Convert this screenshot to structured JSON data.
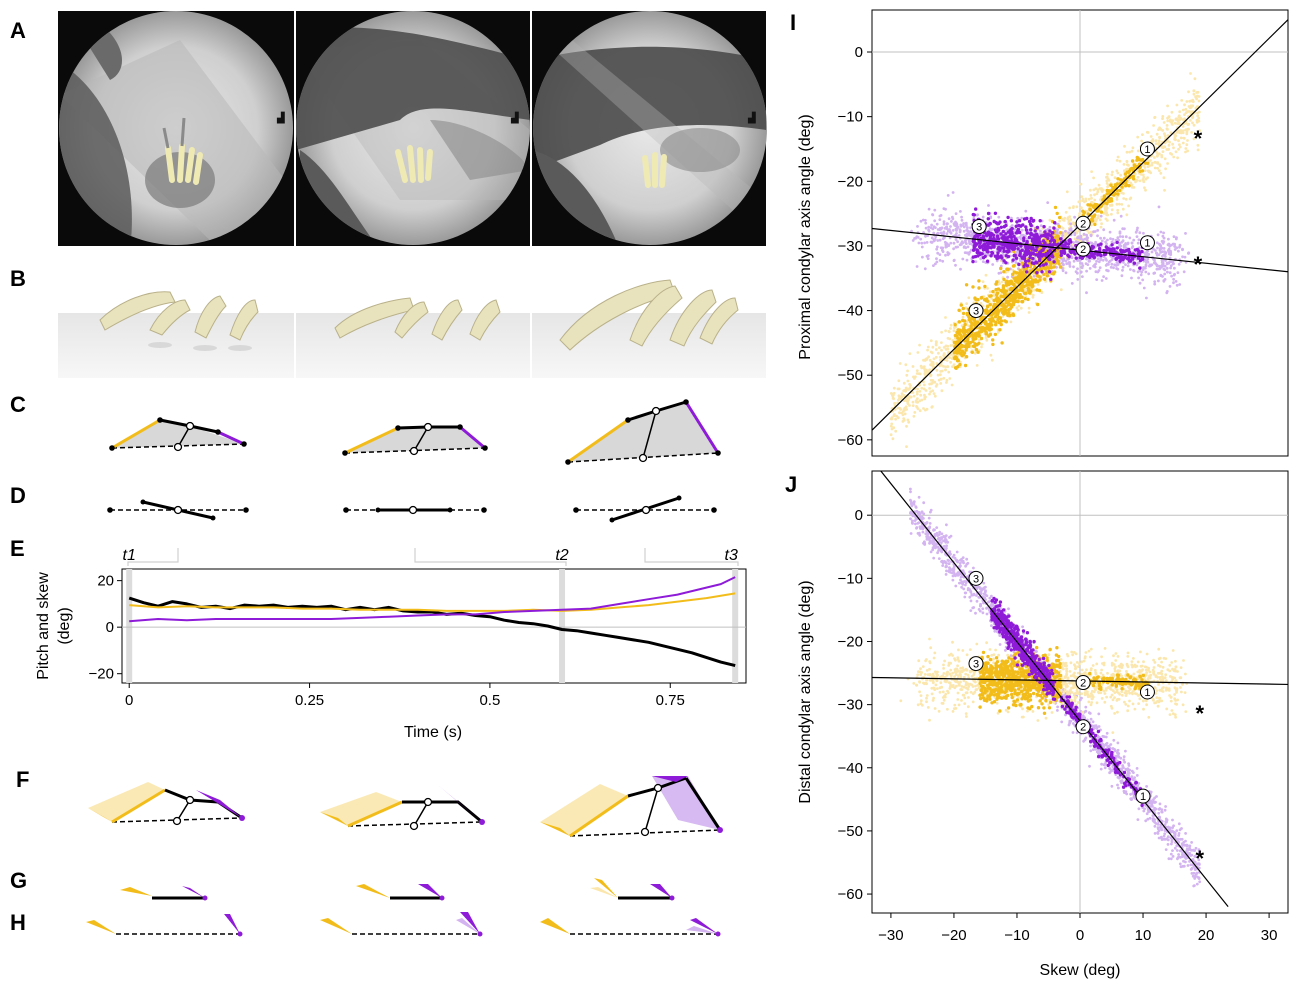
{
  "panel_labels": {
    "A": "A",
    "B": "B",
    "C": "C",
    "D": "D",
    "E": "E",
    "F": "F",
    "G": "G",
    "H": "H",
    "I": "I",
    "J": "J"
  },
  "colors": {
    "gold": "#f2bd1a",
    "gold_light": "#fbe7ad",
    "purple": "#8e1bd8",
    "purple_light": "#d3b3f0",
    "black": "#000000",
    "grid": "#c0c0c0"
  },
  "chart_data": [
    {
      "panel": "E",
      "type": "line",
      "ylabel": "Pitch and skew (deg)",
      "ylabel_lines": [
        "Pitch and skew",
        "(deg)"
      ],
      "xlabel": "Time (s)",
      "xlim": [
        -0.01,
        0.855
      ],
      "ylim": [
        -24,
        25
      ],
      "xticks": [
        0,
        0.25,
        0.5,
        0.75
      ],
      "xtick_labels": [
        "0",
        "0.25",
        "0.5",
        "0.75"
      ],
      "yticks": [
        20,
        0,
        -20
      ],
      "ytick_labels": [
        "20",
        "0",
        "−20"
      ],
      "time_markers": [
        {
          "label": "t1",
          "x": 0
        },
        {
          "label": "t2",
          "x": 0.6
        },
        {
          "label": "t3",
          "x": 0.84
        }
      ],
      "series": [
        {
          "color": "#000000",
          "width": 3,
          "x": [
            0,
            0.02,
            0.04,
            0.06,
            0.08,
            0.1,
            0.12,
            0.14,
            0.16,
            0.18,
            0.2,
            0.22,
            0.24,
            0.26,
            0.28,
            0.3,
            0.32,
            0.34,
            0.36,
            0.38,
            0.4,
            0.42,
            0.44,
            0.46,
            0.48,
            0.5,
            0.52,
            0.54,
            0.56,
            0.58,
            0.6,
            0.62,
            0.64,
            0.66,
            0.68,
            0.7,
            0.72,
            0.74,
            0.76,
            0.78,
            0.8,
            0.82,
            0.84
          ],
          "y": [
            12.5,
            10.5,
            9,
            11,
            10,
            8.5,
            9,
            8,
            9.5,
            9,
            9.5,
            8.5,
            9,
            8.5,
            9,
            7.5,
            8.5,
            7.5,
            8.5,
            7,
            6.5,
            6.5,
            5.5,
            6,
            5,
            4.5,
            3,
            2,
            1.5,
            0.5,
            -1,
            -1.5,
            -2.5,
            -3.5,
            -4.5,
            -5.5,
            -6.5,
            -8,
            -9.5,
            -11,
            -13,
            -15,
            -16.5
          ]
        },
        {
          "color": "#f2bd1a",
          "width": 2,
          "x": [
            0,
            0.04,
            0.08,
            0.12,
            0.16,
            0.2,
            0.24,
            0.28,
            0.32,
            0.36,
            0.4,
            0.44,
            0.48,
            0.52,
            0.56,
            0.6,
            0.64,
            0.68,
            0.72,
            0.76,
            0.8,
            0.84
          ],
          "y": [
            9.5,
            8.5,
            9,
            8.5,
            8.5,
            8.5,
            8,
            8,
            7.5,
            7.5,
            7.5,
            7,
            7,
            7,
            7.5,
            7,
            7.5,
            8.5,
            9.5,
            11,
            12.5,
            14.5
          ]
        },
        {
          "color": "#8e1bd8",
          "width": 2,
          "x": [
            0,
            0.04,
            0.08,
            0.12,
            0.16,
            0.2,
            0.24,
            0.28,
            0.32,
            0.36,
            0.4,
            0.44,
            0.48,
            0.52,
            0.56,
            0.6,
            0.64,
            0.68,
            0.72,
            0.76,
            0.8,
            0.82,
            0.84
          ],
          "y": [
            2.5,
            3.5,
            3,
            3.5,
            3.5,
            3.5,
            3.5,
            3.5,
            4,
            4.5,
            5,
            5.5,
            5.5,
            6.5,
            7,
            7.5,
            8,
            10,
            12,
            14,
            17,
            18.5,
            21.5
          ]
        }
      ]
    },
    {
      "panel": "I",
      "type": "scatter",
      "xlabel": "Skew (deg)",
      "ylabel": "Proximal condylar axis angle (deg)",
      "xlim": [
        -33,
        33
      ],
      "ylim": [
        -62.5,
        6.5
      ],
      "yticks": [
        0,
        -10,
        -20,
        -30,
        -40,
        -50,
        -60
      ],
      "ytick_labels": [
        "0",
        "−10",
        "−20",
        "−30",
        "−40",
        "−50",
        "−60"
      ],
      "lines": [
        {
          "x": [
            -33,
            33
          ],
          "y": [
            -58.5,
            5
          ]
        },
        {
          "x": [
            -33,
            33
          ],
          "y": [
            -27.3,
            -34
          ]
        }
      ],
      "clusters": [
        {
          "name": "",
          "color": "#fbe7ad",
          "n": 1400,
          "kind": "line",
          "x0": -30,
          "x1": 19,
          "slope": 0.962,
          "intercept": -26.7,
          "spread": 2.4
        },
        {
          "name": "",
          "color": "#d3b3f0",
          "n": 1200,
          "kind": "blob",
          "x0": -25,
          "x1": 16,
          "slope": -0.1015,
          "intercept": -30.65,
          "spread": 2.0
        },
        {
          "name": "",
          "color": "#f2bd1a",
          "n": 700,
          "kind": "line",
          "x0": -20,
          "x1": -3,
          "slope": 0.962,
          "intercept": -26.7,
          "spread": 2.0
        },
        {
          "name": "",
          "color": "#f2bd1a",
          "n": 130,
          "kind": "line",
          "x0": 0,
          "x1": 11,
          "slope": 0.962,
          "intercept": -26.7,
          "spread": 0.7
        },
        {
          "name": "",
          "color": "#8e1bd8",
          "n": 450,
          "kind": "line",
          "x0": -17,
          "x1": -4,
          "slope": -0.1015,
          "intercept": -30.65,
          "spread": 1.8
        },
        {
          "name": "",
          "color": "#8e1bd8",
          "n": 180,
          "kind": "line",
          "x0": -4,
          "x1": 10,
          "slope": -0.1015,
          "intercept": -30.65,
          "spread": 0.6
        }
      ],
      "markers": [
        {
          "label": "1",
          "x": 10.7,
          "y": -15
        },
        {
          "label": "2",
          "x": 0.5,
          "y": -26.5
        },
        {
          "label": "3",
          "x": -16.5,
          "y": -40
        },
        {
          "label": "1",
          "x": 10.7,
          "y": -29.5
        },
        {
          "label": "2",
          "x": 0.5,
          "y": -30.5
        },
        {
          "label": "3",
          "x": -16,
          "y": -27
        }
      ],
      "asterisks": [
        {
          "x": 18.7,
          "y": -13
        },
        {
          "x": 18.7,
          "y": -32.5
        }
      ]
    },
    {
      "panel": "J",
      "type": "scatter",
      "xlabel": "Skew (deg)",
      "ylabel": "Distal condylar axis angle (deg)",
      "xlim": [
        -33,
        33
      ],
      "xticks": [
        -30,
        -20,
        -10,
        0,
        10,
        20,
        30
      ],
      "xtick_labels": [
        "−30",
        "−20",
        "−10",
        "0",
        "10",
        "20",
        "30"
      ],
      "ylim": [
        -63,
        7
      ],
      "yticks": [
        0,
        -10,
        -20,
        -30,
        -40,
        -50,
        -60
      ],
      "ytick_labels": [
        "0",
        "−10",
        "−20",
        "−30",
        "−40",
        "−50",
        "−60"
      ],
      "lines": [
        {
          "x": [
            -32,
            23.5
          ],
          "y": [
            7.5,
            -62
          ]
        },
        {
          "x": [
            -33,
            33
          ],
          "y": [
            -25.7,
            -26.8
          ]
        }
      ],
      "clusters": [
        {
          "name": "",
          "color": "#d3b3f0",
          "n": 1500,
          "kind": "line",
          "x0": -27,
          "x1": 19,
          "slope": -1.25,
          "intercept": -32.5,
          "spread": 1.5
        },
        {
          "name": "",
          "color": "#fbe7ad",
          "n": 1200,
          "kind": "blob",
          "x0": -25,
          "x1": 16,
          "slope": -0.0167,
          "intercept": -26.25,
          "spread": 2.2
        },
        {
          "name": "",
          "color": "#f2bd1a",
          "n": 650,
          "kind": "line",
          "x0": -16,
          "x1": -3,
          "slope": -0.0167,
          "intercept": -26.25,
          "spread": 1.9
        },
        {
          "name": "",
          "color": "#f2bd1a",
          "n": 110,
          "kind": "line",
          "x0": 0,
          "x1": 11,
          "slope": -0.0167,
          "intercept": -26.25,
          "spread": 0.6
        },
        {
          "name": "",
          "color": "#8e1bd8",
          "n": 450,
          "kind": "line",
          "x0": -14,
          "x1": -4,
          "slope": -1.25,
          "intercept": -32.5,
          "spread": 1.2
        },
        {
          "name": "",
          "color": "#8e1bd8",
          "n": 180,
          "kind": "line",
          "x0": -3,
          "x1": 10,
          "slope": -1.25,
          "intercept": -32.5,
          "spread": 0.7
        }
      ],
      "markers": [
        {
          "label": "1",
          "x": 10.7,
          "y": -28
        },
        {
          "label": "2",
          "x": 0.5,
          "y": -26.5
        },
        {
          "label": "3",
          "x": -16.5,
          "y": -23.5
        },
        {
          "label": "1",
          "x": 10,
          "y": -44.5
        },
        {
          "label": "2",
          "x": 0.5,
          "y": -33.5
        },
        {
          "label": "3",
          "x": -16.5,
          "y": -10
        }
      ],
      "asterisks": [
        {
          "x": 19,
          "y": -31
        },
        {
          "x": 19,
          "y": -54
        }
      ]
    }
  ]
}
